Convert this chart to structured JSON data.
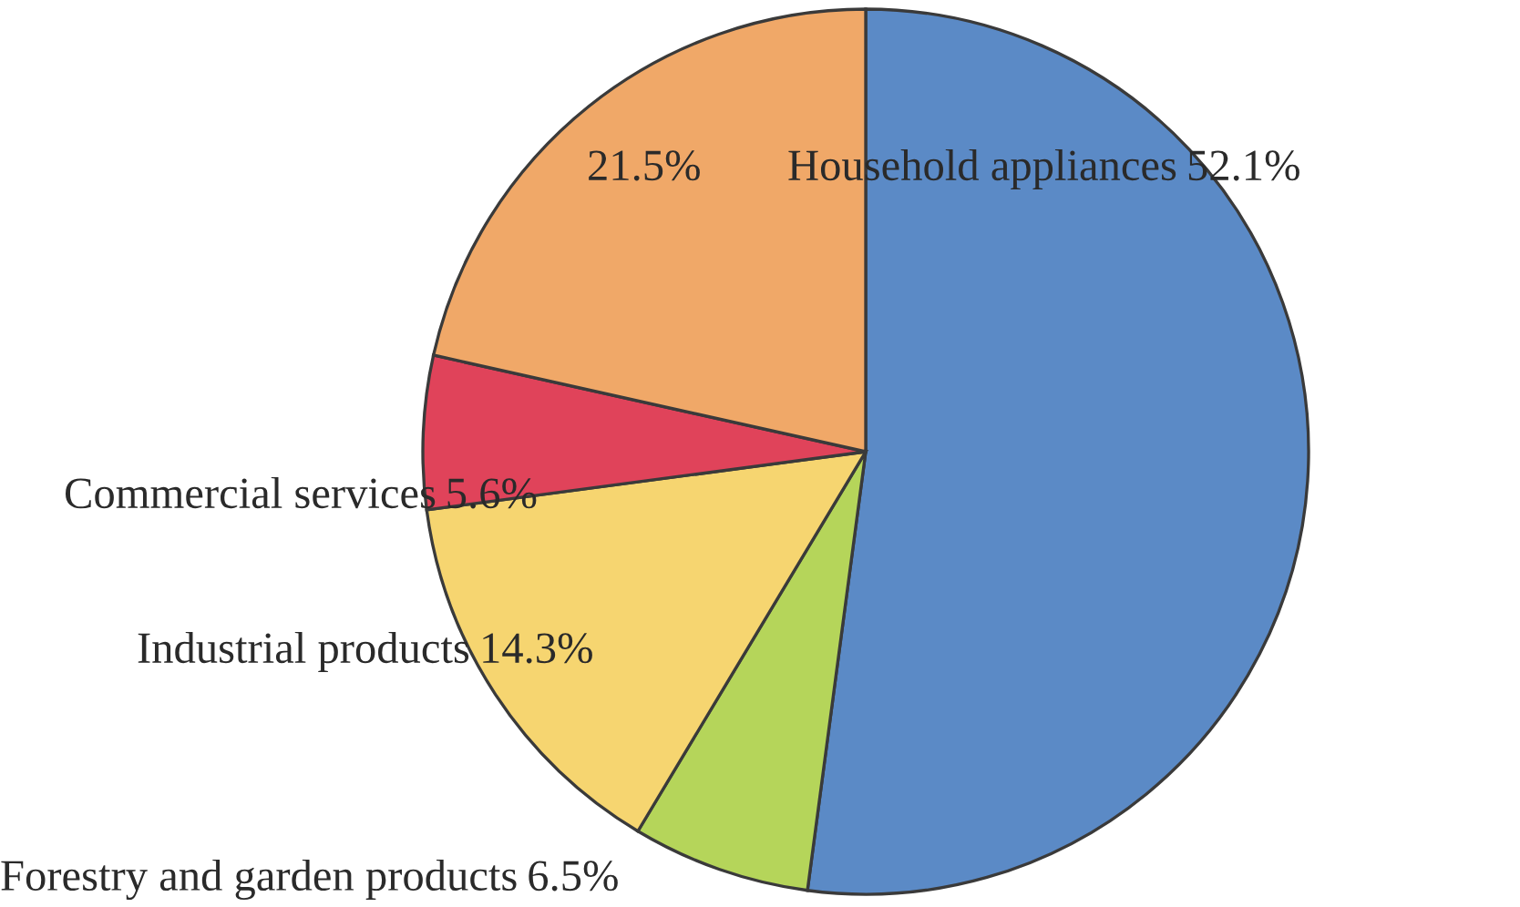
{
  "chart_data": {
    "type": "pie",
    "categories": [
      "Household appliances",
      "Forestry and garden products",
      "Industrial products",
      "Commercial services",
      null
    ],
    "values": [
      52.1,
      6.5,
      14.3,
      5.6,
      21.5
    ],
    "colors": [
      "#5b8ac6",
      "#b5d55a",
      "#f6d570",
      "#e0435a",
      "#f0a868"
    ],
    "value_labels": [
      "52.1%",
      "6.5%",
      "14.3%",
      "5.6%",
      "21.5%"
    ]
  }
}
